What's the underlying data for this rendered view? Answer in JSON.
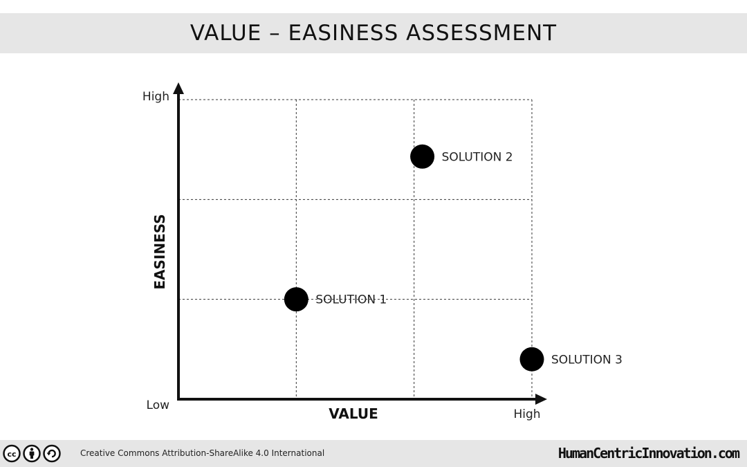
{
  "header": {
    "title": "VALUE – EASINESS ASSESSMENT"
  },
  "chart_data": {
    "type": "scatter",
    "title": "VALUE – EASINESS ASSESSMENT",
    "xlabel": "VALUE",
    "ylabel": "EASINESS",
    "x_tick_labels": {
      "low": "Low",
      "high": "High"
    },
    "y_tick_labels": {
      "low": "Low",
      "high": "High"
    },
    "xlim": [
      0,
      3
    ],
    "ylim": [
      0,
      3
    ],
    "grid": true,
    "grid_style": "dashed",
    "points": [
      {
        "label": "SOLUTION 1",
        "x": 1.0,
        "y": 1.0
      },
      {
        "label": "SOLUTION 2",
        "x": 2.07,
        "y": 2.43
      },
      {
        "label": "SOLUTION 3",
        "x": 3.0,
        "y": 0.4
      }
    ],
    "colors": {
      "axis": "#111111",
      "point": "#000000",
      "grid": "#333333"
    }
  },
  "footer": {
    "license": "Creative Commons  Attribution-ShareAlike  4.0 International",
    "site": "HumanCentricInnovation.com",
    "license_icons": [
      "cc-icon",
      "attribution-icon",
      "share-alike-icon"
    ]
  }
}
